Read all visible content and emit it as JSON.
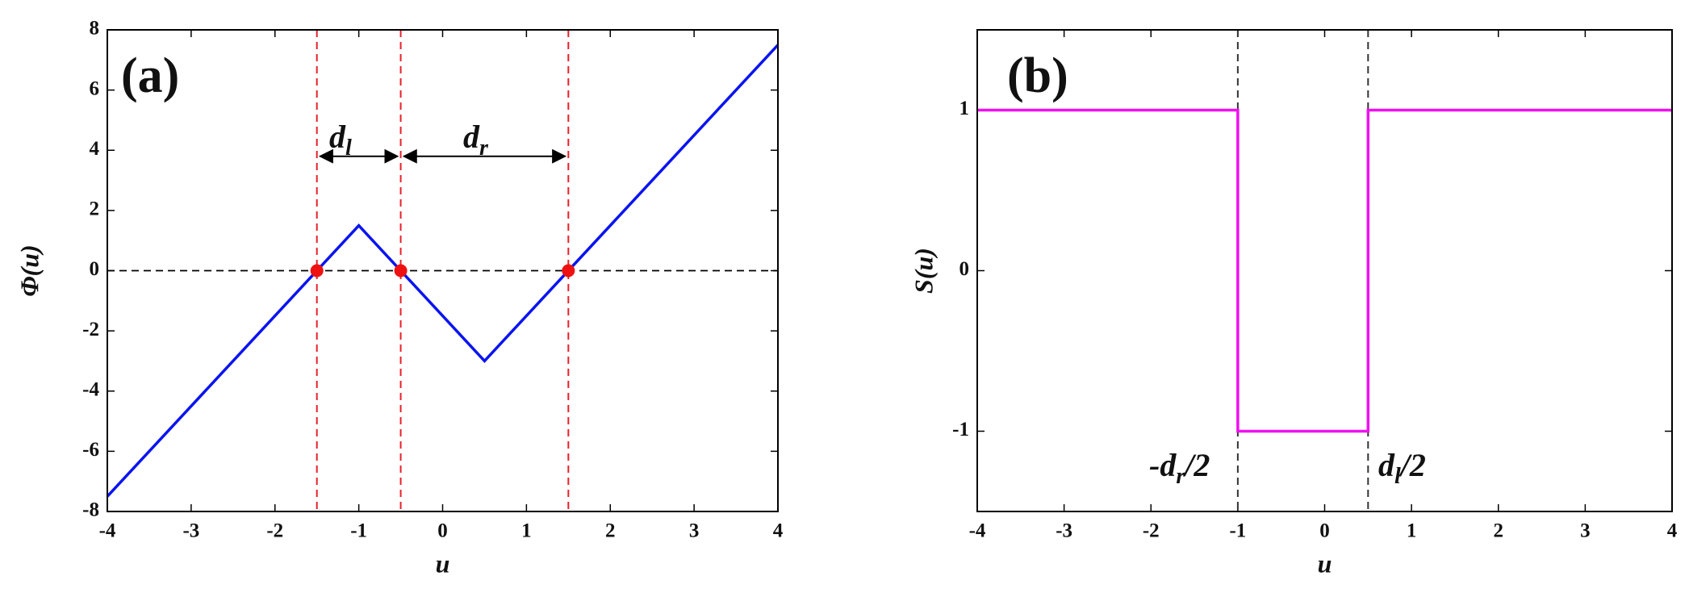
{
  "chart_data": [
    {
      "type": "line",
      "xlabel": "u",
      "ylabel": "Φ(u)",
      "xlim": [
        -4,
        4
      ],
      "ylim": [
        -8,
        8
      ],
      "xticks": [
        -4,
        -3,
        -2,
        -1,
        0,
        1,
        2,
        3,
        4
      ],
      "yticks": [
        -8,
        -6,
        -4,
        -2,
        0,
        2,
        4,
        6,
        8
      ],
      "series": [
        {
          "color": "#0a14f0",
          "x": [
            -4,
            -1,
            0.5,
            4
          ],
          "values": [
            -7.5,
            1.5,
            -3,
            7.5
          ]
        }
      ],
      "vlines": {
        "color": "#e8202a",
        "x": [
          -1.5,
          -0.5,
          1.5
        ]
      },
      "hline": 0,
      "markers": {
        "color": "#ee1111",
        "x": [
          -1.5,
          -0.5,
          1.5
        ],
        "values": [
          0,
          0,
          0
        ]
      },
      "arrows": [
        {
          "from": -1.5,
          "to": -0.5,
          "y": 3.8
        },
        {
          "from": -0.5,
          "to": 1.5,
          "y": 3.8
        }
      ],
      "annotations": [
        {
          "text": "(a)"
        },
        {
          "text": "d",
          "sub": "l"
        },
        {
          "text": "d",
          "sub": "r"
        }
      ]
    },
    {
      "type": "line",
      "xlabel": "u",
      "ylabel": "S(u)",
      "xlim": [
        -4,
        4
      ],
      "ylim": [
        -1.5,
        1.5
      ],
      "xticks": [
        -4,
        -3,
        -2,
        -1,
        0,
        1,
        2,
        3,
        4
      ],
      "yticks": [
        -1,
        0,
        1
      ],
      "series": [
        {
          "color": "#f010f0",
          "x": [
            -4,
            -1,
            -1,
            0.5,
            0.5,
            4
          ],
          "values": [
            1,
            1,
            -1,
            -1,
            1,
            1
          ]
        }
      ],
      "vlines": {
        "color": "#333333",
        "x": [
          -1,
          0.5
        ]
      },
      "annotations": [
        {
          "text": "(b)"
        },
        {
          "text": "-d",
          "sub": "r",
          "suffix": "/2"
        },
        {
          "text": "d",
          "sub": "l",
          "suffix": "/2"
        }
      ]
    }
  ]
}
